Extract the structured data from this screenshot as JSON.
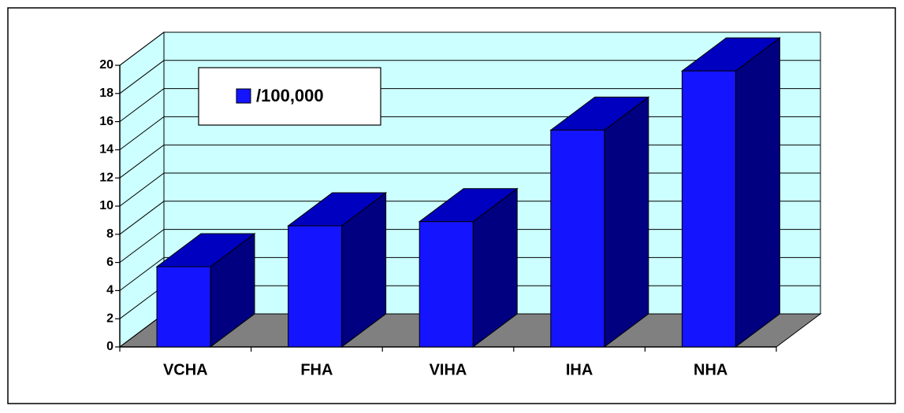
{
  "chart_data": {
    "type": "bar3d",
    "categories": [
      "VCHA",
      "FHA",
      "VIHA",
      "IHA",
      "NHA"
    ],
    "series": [
      {
        "name": "/100,000",
        "color": "#1414ff",
        "values": [
          5.7,
          8.6,
          8.9,
          15.4,
          19.6
        ]
      }
    ],
    "ylim": [
      0,
      20
    ],
    "yticks": [
      0,
      2,
      4,
      6,
      8,
      10,
      12,
      14,
      16,
      18,
      20
    ],
    "grid": true
  }
}
